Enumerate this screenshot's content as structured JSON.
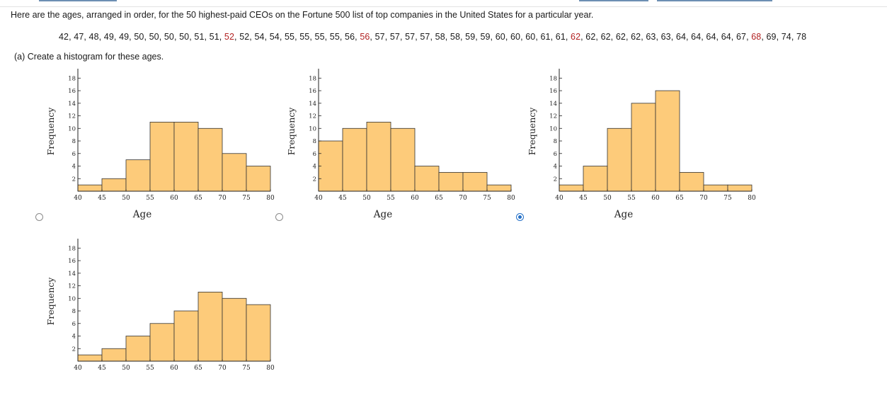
{
  "question": {
    "intro": "Here are the ages, arranged in order, for the 50 highest-paid CEOs on the Fortune 500 list of top companies in the United States for a particular year.",
    "ages": [
      {
        "v": "42",
        "hl": false
      },
      {
        "v": "47",
        "hl": false
      },
      {
        "v": "48",
        "hl": false
      },
      {
        "v": "49",
        "hl": false
      },
      {
        "v": "49",
        "hl": false
      },
      {
        "v": "50",
        "hl": false
      },
      {
        "v": "50",
        "hl": false
      },
      {
        "v": "50",
        "hl": false
      },
      {
        "v": "50",
        "hl": false
      },
      {
        "v": "51",
        "hl": false
      },
      {
        "v": "51",
        "hl": false
      },
      {
        "v": "52",
        "hl": true
      },
      {
        "v": "52",
        "hl": false
      },
      {
        "v": "54",
        "hl": false
      },
      {
        "v": "54",
        "hl": false
      },
      {
        "v": "55",
        "hl": false
      },
      {
        "v": "55",
        "hl": false
      },
      {
        "v": "55",
        "hl": false
      },
      {
        "v": "55",
        "hl": false
      },
      {
        "v": "56",
        "hl": false
      },
      {
        "v": "56",
        "hl": true
      },
      {
        "v": "57",
        "hl": false
      },
      {
        "v": "57",
        "hl": false
      },
      {
        "v": "57",
        "hl": false
      },
      {
        "v": "57",
        "hl": false
      },
      {
        "v": "58",
        "hl": false
      },
      {
        "v": "58",
        "hl": false
      },
      {
        "v": "59",
        "hl": false
      },
      {
        "v": "59",
        "hl": false
      },
      {
        "v": "60",
        "hl": false
      },
      {
        "v": "60",
        "hl": false
      },
      {
        "v": "60",
        "hl": false
      },
      {
        "v": "61",
        "hl": false
      },
      {
        "v": "61",
        "hl": false
      },
      {
        "v": "62",
        "hl": true
      },
      {
        "v": "62",
        "hl": false
      },
      {
        "v": "62",
        "hl": false
      },
      {
        "v": "62",
        "hl": false
      },
      {
        "v": "62",
        "hl": false
      },
      {
        "v": "63",
        "hl": false
      },
      {
        "v": "63",
        "hl": false
      },
      {
        "v": "64",
        "hl": false
      },
      {
        "v": "64",
        "hl": false
      },
      {
        "v": "64",
        "hl": false
      },
      {
        "v": "64",
        "hl": false
      },
      {
        "v": "67",
        "hl": false
      },
      {
        "v": "68",
        "hl": true
      },
      {
        "v": "69",
        "hl": false
      },
      {
        "v": "74",
        "hl": false
      },
      {
        "v": "78",
        "hl": false
      }
    ],
    "part_a": "(a)   Create a histogram for these ages."
  },
  "colors": {
    "bar_fill": "#fdcb7a",
    "bar_stroke": "#333333",
    "highlight": "#b22222",
    "radio_selected": "#2470c7"
  },
  "selected_option": 2,
  "chart_data": [
    {
      "type": "bar",
      "bin_edges": [
        40,
        45,
        50,
        55,
        60,
        65,
        70,
        75,
        80
      ],
      "values": [
        1,
        2,
        5,
        11,
        11,
        10,
        6,
        4
      ],
      "xticks": [
        40,
        45,
        50,
        55,
        60,
        65,
        70,
        75,
        80
      ],
      "yticks": [
        2,
        4,
        6,
        8,
        10,
        12,
        14,
        16,
        18
      ],
      "xlabel": "Age",
      "ylabel": "Frequency",
      "xlim": [
        40,
        80
      ],
      "ylim": [
        0,
        19.5
      ]
    },
    {
      "type": "bar",
      "bin_edges": [
        40,
        45,
        50,
        55,
        60,
        65,
        70,
        75,
        80
      ],
      "values": [
        8,
        10,
        11,
        10,
        4,
        3,
        3,
        1
      ],
      "xticks": [
        40,
        45,
        50,
        55,
        60,
        65,
        70,
        75,
        80
      ],
      "yticks": [
        2,
        4,
        6,
        8,
        10,
        12,
        14,
        16,
        18
      ],
      "xlabel": "Age",
      "ylabel": "Frequency",
      "xlim": [
        40,
        80
      ],
      "ylim": [
        0,
        19.5
      ]
    },
    {
      "type": "bar",
      "bin_edges": [
        40,
        45,
        50,
        55,
        60,
        65,
        70,
        75,
        80
      ],
      "values": [
        1,
        4,
        10,
        14,
        16,
        3,
        1,
        1
      ],
      "xticks": [
        40,
        45,
        50,
        55,
        60,
        65,
        70,
        75,
        80
      ],
      "yticks": [
        2,
        4,
        6,
        8,
        10,
        12,
        14,
        16,
        18
      ],
      "xlabel": "Age",
      "ylabel": "Frequency",
      "xlim": [
        40,
        80
      ],
      "ylim": [
        0,
        19.5
      ]
    },
    {
      "type": "bar",
      "bin_edges": [
        40,
        45,
        50,
        55,
        60,
        65,
        70,
        75,
        80
      ],
      "values": [
        1,
        2,
        4,
        6,
        8,
        11,
        10,
        9
      ],
      "xticks": [
        40,
        45,
        50,
        55,
        60,
        65,
        70,
        75,
        80
      ],
      "yticks": [
        2,
        4,
        6,
        8,
        10,
        12,
        14,
        16,
        18
      ],
      "xlabel": "",
      "ylabel": "Frequency",
      "xlim": [
        40,
        80
      ],
      "ylim": [
        0,
        19.5
      ]
    }
  ]
}
